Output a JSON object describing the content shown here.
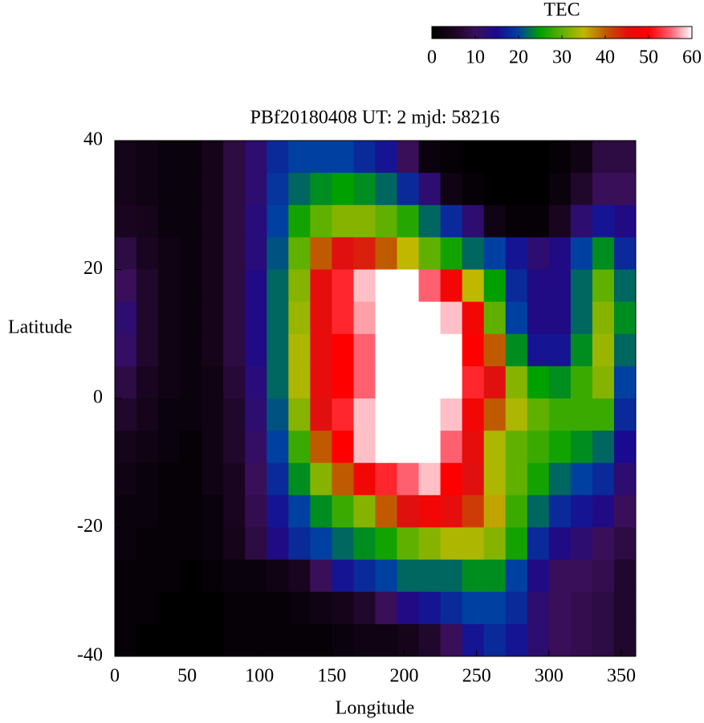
{
  "chart_data": {
    "type": "heatmap",
    "title": "PBf20180408  UT: 2  mjd: 58216",
    "xlabel": "Longitude",
    "ylabel": "Latitude",
    "colorbar_title": "TEC",
    "x": [
      7.5,
      22.5,
      37.5,
      52.5,
      67.5,
      82.5,
      97.5,
      112.5,
      127.5,
      142.5,
      157.5,
      172.5,
      187.5,
      202.5,
      217.5,
      232.5,
      247.5,
      262.5,
      277.5,
      292.5,
      307.5,
      322.5,
      337.5,
      352.5
    ],
    "y": [
      37.5,
      32.5,
      27.5,
      22.5,
      17.5,
      12.5,
      7.5,
      2.5,
      -2.5,
      -7.5,
      -12.5,
      -17.5,
      -22.5,
      -27.5,
      -32.5,
      -37.5
    ],
    "values": [
      [
        4,
        3,
        2,
        2,
        4,
        8,
        12,
        18,
        20,
        20,
        20,
        18,
        16,
        10,
        2,
        1,
        0,
        0,
        0,
        0,
        1,
        3,
        8,
        8
      ],
      [
        4,
        3,
        2,
        2,
        4,
        8,
        12,
        19,
        22,
        24,
        25,
        24,
        22,
        18,
        12,
        3,
        1,
        0,
        0,
        0,
        2,
        6,
        10,
        10
      ],
      [
        5,
        4,
        2,
        2,
        4,
        8,
        13,
        20,
        26,
        30,
        32,
        32,
        30,
        27,
        22,
        18,
        12,
        3,
        1,
        1,
        5,
        12,
        16,
        14
      ],
      [
        8,
        5,
        3,
        2,
        4,
        8,
        13,
        21,
        30,
        40,
        45,
        44,
        40,
        35,
        30,
        26,
        22,
        20,
        16,
        12,
        14,
        20,
        24,
        18
      ],
      [
        10,
        6,
        3,
        2,
        4,
        8,
        14,
        22,
        32,
        46,
        52,
        58,
        60,
        60,
        55,
        48,
        35,
        25,
        18,
        14,
        14,
        22,
        30,
        22
      ],
      [
        12,
        6,
        3,
        2,
        4,
        8,
        14,
        22,
        33,
        46,
        52,
        57,
        60,
        60,
        60,
        58,
        48,
        30,
        20,
        14,
        14,
        22,
        32,
        24
      ],
      [
        11,
        6,
        3,
        2,
        4,
        8,
        14,
        22,
        34,
        46,
        50,
        55,
        60,
        60,
        60,
        60,
        50,
        40,
        24,
        16,
        16,
        24,
        33,
        22
      ],
      [
        8,
        5,
        3,
        2,
        3,
        7,
        13,
        22,
        34,
        46,
        50,
        55,
        60,
        60,
        60,
        60,
        52,
        45,
        32,
        25,
        24,
        28,
        32,
        20
      ],
      [
        6,
        4,
        2,
        2,
        3,
        6,
        12,
        21,
        32,
        45,
        52,
        58,
        60,
        60,
        60,
        58,
        48,
        40,
        34,
        30,
        28,
        28,
        28,
        18
      ],
      [
        4,
        3,
        2,
        1,
        3,
        6,
        11,
        20,
        28,
        40,
        50,
        58,
        60,
        60,
        60,
        55,
        46,
        34,
        30,
        28,
        26,
        24,
        22,
        15
      ],
      [
        3,
        2,
        1,
        1,
        3,
        5,
        10,
        18,
        24,
        32,
        40,
        48,
        52,
        55,
        58,
        50,
        45,
        34,
        30,
        26,
        22,
        20,
        18,
        12
      ],
      [
        2,
        2,
        1,
        1,
        2,
        5,
        9,
        16,
        20,
        24,
        28,
        32,
        40,
        45,
        48,
        46,
        42,
        36,
        28,
        22,
        18,
        16,
        14,
        10
      ],
      [
        2,
        1,
        1,
        1,
        2,
        4,
        8,
        14,
        18,
        20,
        22,
        24,
        26,
        30,
        32,
        34,
        34,
        32,
        26,
        18,
        14,
        12,
        10,
        8
      ],
      [
        1,
        1,
        1,
        0,
        1,
        2,
        2,
        3,
        5,
        10,
        16,
        18,
        20,
        22,
        22,
        22,
        24,
        24,
        20,
        14,
        10,
        10,
        9,
        6
      ],
      [
        1,
        1,
        0,
        0,
        0,
        1,
        1,
        1,
        2,
        3,
        4,
        6,
        10,
        14,
        16,
        18,
        20,
        20,
        18,
        12,
        10,
        9,
        8,
        6
      ],
      [
        1,
        0,
        0,
        0,
        0,
        1,
        1,
        1,
        1,
        1,
        2,
        3,
        3,
        4,
        6,
        10,
        16,
        18,
        16,
        12,
        10,
        9,
        8,
        6
      ]
    ],
    "xlim": [
      0,
      360
    ],
    "xticks": [
      0,
      50,
      100,
      150,
      200,
      250,
      300,
      350
    ],
    "ylim": [
      -40,
      40
    ],
    "yticks": [
      -40,
      -20,
      0,
      20,
      40
    ],
    "zlim": [
      0,
      60
    ],
    "zticks": [
      0,
      10,
      20,
      30,
      40,
      50,
      60
    ],
    "colorscale": [
      [
        0,
        "#000000"
      ],
      [
        5,
        "#1a0520"
      ],
      [
        10,
        "#3a0f5a"
      ],
      [
        15,
        "#1a0a90"
      ],
      [
        20,
        "#0040a0"
      ],
      [
        25,
        "#00a000"
      ],
      [
        30,
        "#60b000"
      ],
      [
        35,
        "#c0b800"
      ],
      [
        40,
        "#c05a00"
      ],
      [
        45,
        "#e01010"
      ],
      [
        50,
        "#ff0000"
      ],
      [
        55,
        "#ff6070"
      ],
      [
        60,
        "#ffffff"
      ]
    ]
  }
}
